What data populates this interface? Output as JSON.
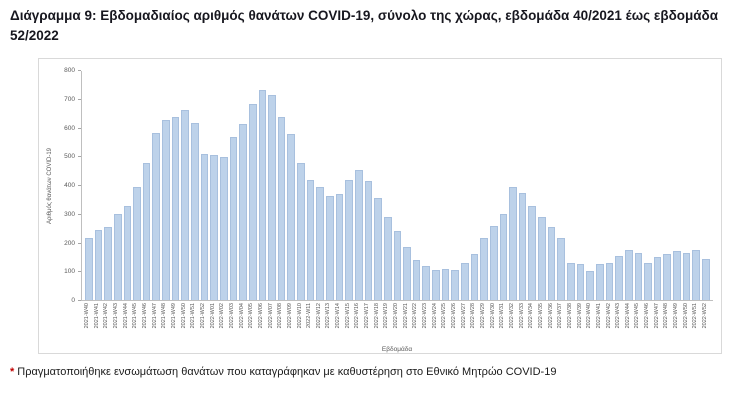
{
  "title": "Διάγραμμα 9: Εβδομαδιαίος αριθμός θανάτων COVID-19, σύνολο της χώρας, εβδομάδα 40/2021 έως εβδομάδα 52/2022",
  "footnote": {
    "marker": "*",
    "text": "Πραγματοποιήθηκε ενσωμάτωση θανάτων που καταγράφηκαν με καθυστέρηση στο Εθνικό Μητρώο COVID-19"
  },
  "chart_data": {
    "type": "bar",
    "title": "Εβδομαδιαίος αριθμός θανάτων COVID-19, σύνολο της χώρας, εβδομάδα 40/2021 έως εβδομάδα 52/2022",
    "xlabel": "Εβδομάδα",
    "ylabel": "Αριθμός θανάτων COVID-19",
    "ylim": [
      0,
      800
    ],
    "yticks": [
      0,
      100,
      200,
      300,
      400,
      500,
      600,
      700,
      800
    ],
    "grid": false,
    "legend": "none",
    "bar_color": "#bdd2ea",
    "bar_border": "#a8c0de",
    "categories": [
      "2021-W40",
      "2021-W41",
      "2021-W42",
      "2021-W43",
      "2021-W44",
      "2021-W45",
      "2021-W46",
      "2021-W47",
      "2021-W48",
      "2021-W49",
      "2021-W50",
      "2021-W51",
      "2021-W52",
      "2022-W01",
      "2022-W02",
      "2022-W03",
      "2022-W04",
      "2022-W05",
      "2022-W06",
      "2022-W07",
      "2022-W08",
      "2022-W09",
      "2022-W10",
      "2022-W11",
      "2022-W12",
      "2022-W13",
      "2022-W14",
      "2022-W15",
      "2022-W16",
      "2022-W17",
      "2022-W18",
      "2022-W19",
      "2022-W20",
      "2022-W21",
      "2022-W22",
      "2022-W23",
      "2022-W24",
      "2022-W25",
      "2022-W26",
      "2022-W27",
      "2022-W28",
      "2022-W29",
      "2022-W30",
      "2022-W31",
      "2022-W32",
      "2022-W33",
      "2022-W34",
      "2022-W35",
      "2022-W36",
      "2022-W37",
      "2022-W38",
      "2022-W39",
      "2022-W40",
      "2022-W41",
      "2022-W42",
      "2022-W43",
      "2022-W44",
      "2022-W45",
      "2022-W46",
      "2022-W47",
      "2022-W48",
      "2022-W49",
      "2022-W50",
      "2022-W51",
      "2022-W52"
    ],
    "values": [
      215,
      245,
      255,
      300,
      330,
      395,
      480,
      585,
      630,
      640,
      665,
      620,
      510,
      505,
      500,
      570,
      615,
      685,
      735,
      715,
      640,
      580,
      480,
      420,
      395,
      365,
      370,
      420,
      455,
      415,
      355,
      290,
      240,
      185,
      140,
      120,
      105,
      110,
      105,
      130,
      160,
      215,
      260,
      300,
      395,
      375,
      330,
      290,
      255,
      215,
      130,
      125,
      100,
      125,
      130,
      155,
      175,
      165,
      130,
      150,
      160,
      170,
      165,
      175,
      145
    ]
  }
}
